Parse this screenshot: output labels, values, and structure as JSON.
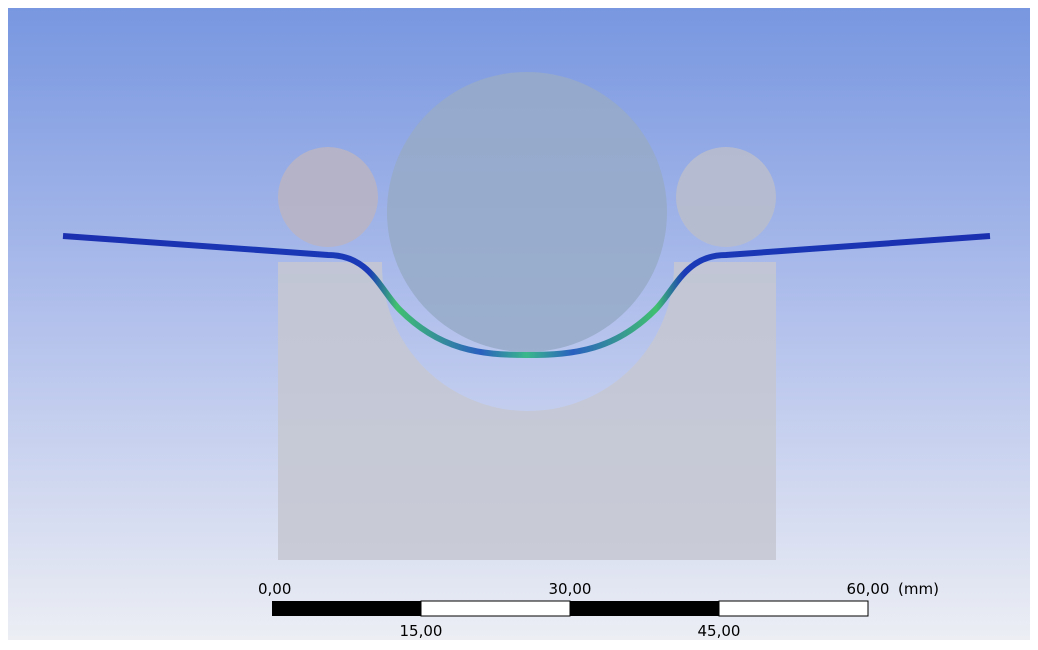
{
  "scale_bar": {
    "labels_top": [
      "0,00",
      "30,00",
      "60,00"
    ],
    "labels_bottom": [
      "15,00",
      "45,00"
    ],
    "unit": "(mm)"
  }
}
